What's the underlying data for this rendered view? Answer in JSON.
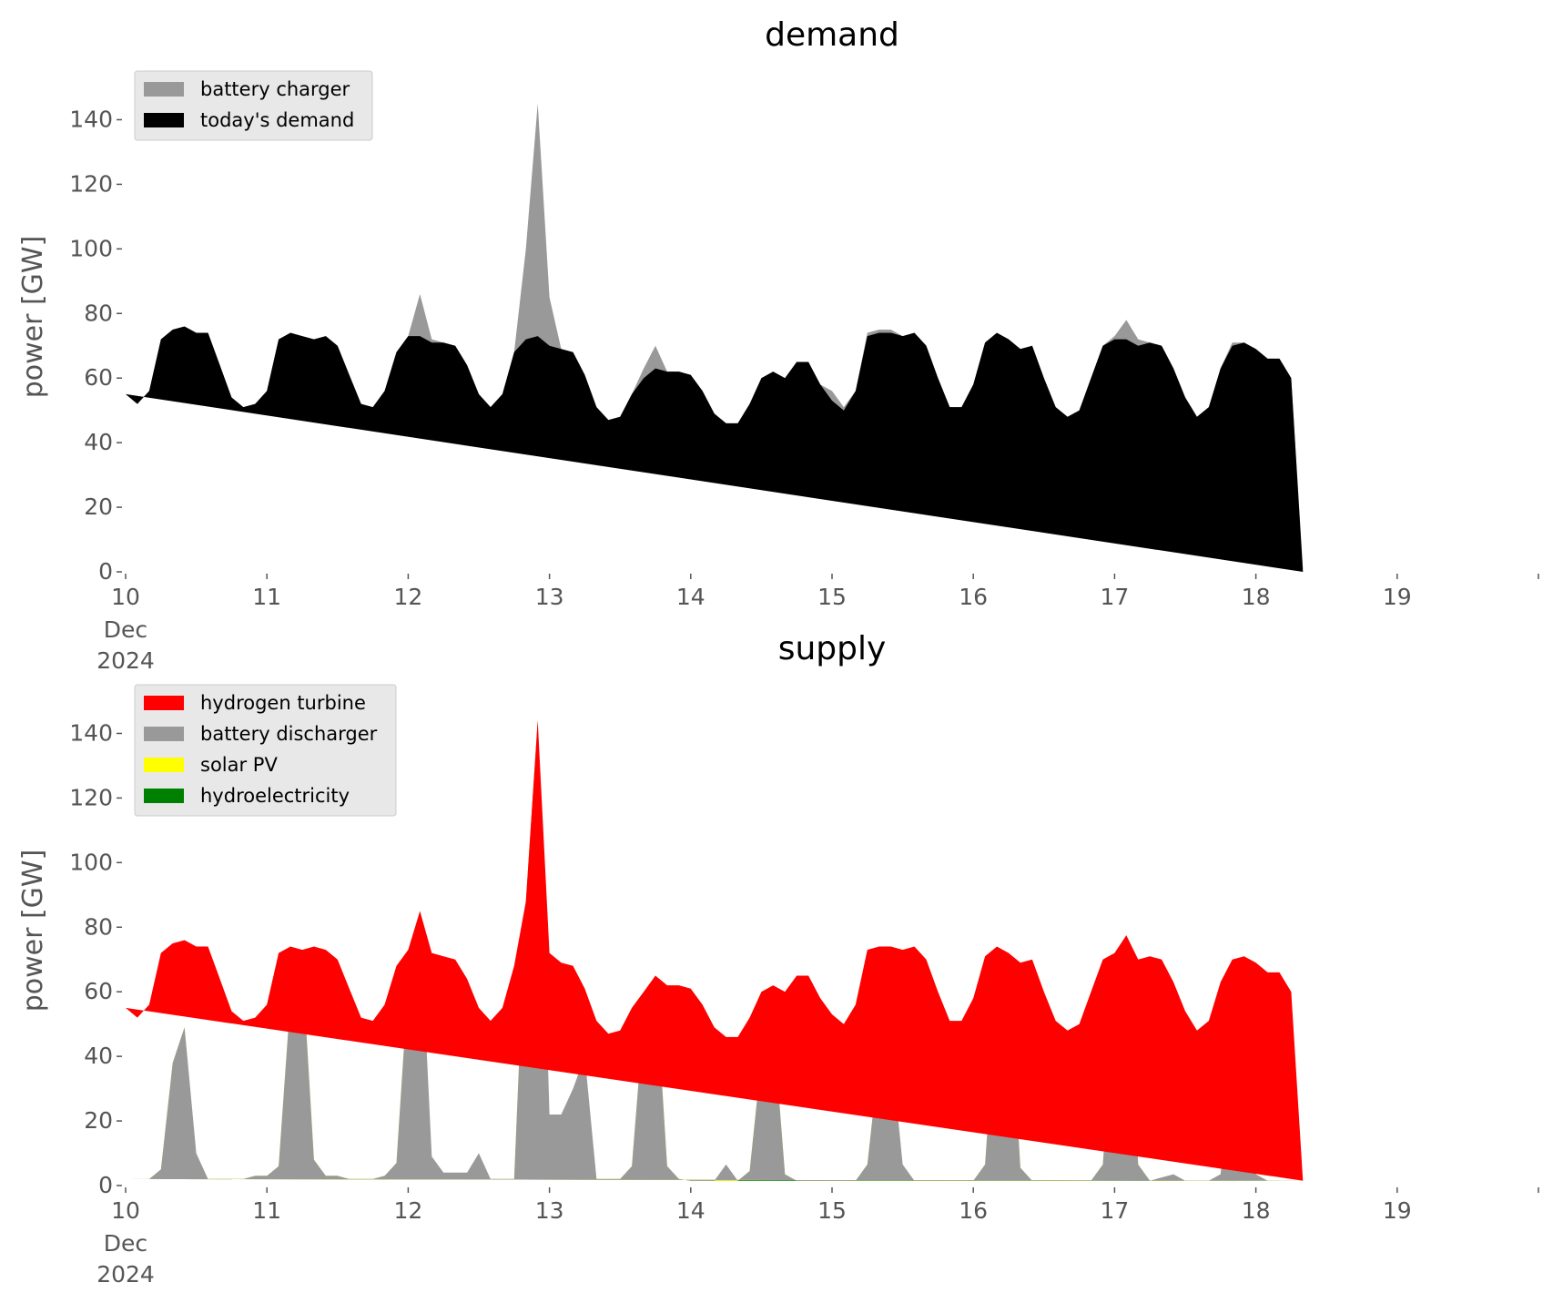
{
  "chart_data": [
    {
      "type": "area",
      "title": "demand",
      "xlabel": "",
      "ylabel": "power [GW]",
      "ylim": [
        0,
        150
      ],
      "yticks": [
        0,
        20,
        40,
        60,
        80,
        100,
        120,
        140
      ],
      "xlim": [
        "2024-12-10",
        "2024-12-20"
      ],
      "xticks": [
        "10",
        "11",
        "12",
        "13",
        "14",
        "15",
        "16",
        "17",
        "18",
        "19"
      ],
      "xtick_sub": [
        "Dec",
        "2024"
      ],
      "grid": false,
      "legend": "top-left",
      "stacked": false,
      "x_times": [
        "2024-12-10 00:00",
        "2024-12-10 02:00",
        "2024-12-10 04:00",
        "2024-12-10 06:00",
        "2024-12-10 08:00",
        "2024-12-10 10:00",
        "2024-12-10 12:00",
        "2024-12-10 14:00",
        "2024-12-10 16:00",
        "2024-12-10 18:00",
        "2024-12-10 20:00",
        "2024-12-10 22:00",
        "2024-12-11 00:00",
        "2024-12-11 02:00",
        "2024-12-11 04:00",
        "2024-12-11 06:00",
        "2024-12-11 08:00",
        "2024-12-11 10:00",
        "2024-12-11 12:00",
        "2024-12-11 14:00",
        "2024-12-11 16:00",
        "2024-12-11 18:00",
        "2024-12-11 20:00",
        "2024-12-11 22:00",
        "2024-12-12 00:00",
        "2024-12-12 02:00",
        "2024-12-12 04:00",
        "2024-12-12 06:00",
        "2024-12-12 08:00",
        "2024-12-12 10:00",
        "2024-12-12 12:00",
        "2024-12-12 14:00",
        "2024-12-12 16:00",
        "2024-12-12 18:00",
        "2024-12-12 20:00",
        "2024-12-12 22:00",
        "2024-12-13 00:00",
        "2024-12-13 02:00",
        "2024-12-13 04:00",
        "2024-12-13 06:00",
        "2024-12-13 08:00",
        "2024-12-13 10:00",
        "2024-12-13 12:00",
        "2024-12-13 14:00",
        "2024-12-13 16:00",
        "2024-12-13 18:00",
        "2024-12-13 20:00",
        "2024-12-13 22:00",
        "2024-12-14 00:00",
        "2024-12-14 02:00",
        "2024-12-14 04:00",
        "2024-12-14 06:00",
        "2024-12-14 08:00",
        "2024-12-14 10:00",
        "2024-12-14 12:00",
        "2024-12-14 14:00",
        "2024-12-14 16:00",
        "2024-12-14 18:00",
        "2024-12-14 20:00",
        "2024-12-14 22:00",
        "2024-12-15 00:00",
        "2024-12-15 02:00",
        "2024-12-15 04:00",
        "2024-12-15 06:00",
        "2024-12-15 08:00",
        "2024-12-15 10:00",
        "2024-12-15 12:00",
        "2024-12-15 14:00",
        "2024-12-15 16:00",
        "2024-12-15 18:00",
        "2024-12-15 20:00",
        "2024-12-15 22:00",
        "2024-12-16 00:00",
        "2024-12-16 02:00",
        "2024-12-16 04:00",
        "2024-12-16 06:00",
        "2024-12-16 08:00",
        "2024-12-16 10:00",
        "2024-12-16 12:00",
        "2024-12-16 14:00",
        "2024-12-16 16:00",
        "2024-12-16 18:00",
        "2024-12-16 20:00",
        "2024-12-16 22:00",
        "2024-12-17 00:00",
        "2024-12-17 02:00",
        "2024-12-17 04:00",
        "2024-12-17 06:00",
        "2024-12-17 08:00",
        "2024-12-17 10:00",
        "2024-12-17 12:00",
        "2024-12-17 14:00",
        "2024-12-17 16:00",
        "2024-12-17 18:00",
        "2024-12-17 20:00",
        "2024-12-17 22:00",
        "2024-12-18 00:00",
        "2024-12-18 02:00",
        "2024-12-18 04:00",
        "2024-12-18 06:00",
        "2024-12-18 08:00",
        "2024-12-18 10:00",
        "2024-12-18 12:00",
        "2024-12-18 14:00",
        "2024-12-18 16:00",
        "2024-12-18 18:00",
        "2024-12-18 20:00",
        "2024-12-18 22:00",
        "2024-12-19 00:00",
        "2024-12-19 02:00",
        "2024-12-19 04:00",
        "2024-12-19 06:00",
        "2024-12-19 08:00",
        "2024-12-19 10:00",
        "2024-12-19 12:00",
        "2024-12-19 14:00",
        "2024-12-19 16:00",
        "2024-12-19 18:00",
        "2024-12-19 20:00",
        "2024-12-19 22:00",
        "2024-12-20 00:00"
      ],
      "series": [
        {
          "name": "battery charger",
          "color": "#999999",
          "values": [
            55,
            52,
            56,
            72,
            75,
            76,
            74,
            74,
            64,
            54,
            51,
            52,
            56,
            72,
            74,
            73,
            72,
            73,
            70,
            61,
            52,
            51,
            56,
            68,
            73,
            86,
            72,
            71,
            70,
            64,
            55,
            51,
            55,
            68,
            100,
            145,
            85,
            69,
            68,
            61,
            51,
            47,
            48,
            55,
            63,
            70,
            62,
            62,
            61,
            56,
            49,
            46,
            46,
            52,
            60,
            62,
            60,
            65,
            65,
            58,
            56,
            51,
            56,
            74,
            75,
            75,
            73,
            74,
            70,
            60,
            51,
            51,
            58,
            71,
            74,
            72,
            69,
            70,
            60,
            51,
            48,
            50,
            60,
            70,
            73,
            78,
            72,
            71,
            70,
            63,
            54,
            48,
            51,
            63,
            71,
            71,
            69,
            66,
            66,
            60,
            1
          ]
        },
        {
          "name": "today's demand",
          "color": "#000000",
          "values": [
            55,
            52,
            56,
            72,
            75,
            76,
            74,
            74,
            64,
            54,
            51,
            52,
            56,
            72,
            74,
            73,
            72,
            73,
            70,
            61,
            52,
            51,
            56,
            68,
            73,
            73,
            71,
            71,
            70,
            64,
            55,
            51,
            55,
            68,
            72,
            73,
            70,
            69,
            68,
            61,
            51,
            47,
            48,
            55,
            60,
            63,
            62,
            62,
            61,
            56,
            49,
            46,
            46,
            52,
            60,
            62,
            60,
            65,
            65,
            58,
            53,
            50,
            56,
            73,
            74,
            74,
            73,
            74,
            70,
            60,
            51,
            51,
            58,
            71,
            74,
            72,
            69,
            70,
            60,
            51,
            48,
            50,
            60,
            70,
            72,
            72,
            70,
            71,
            70,
            63,
            54,
            48,
            51,
            63,
            70,
            71,
            69,
            66,
            66,
            60,
            0
          ]
        }
      ]
    },
    {
      "type": "area",
      "title": "supply",
      "xlabel": "",
      "ylabel": "power [GW]",
      "ylim": [
        0,
        150
      ],
      "yticks": [
        0,
        20,
        40,
        60,
        80,
        100,
        120,
        140
      ],
      "xlim": [
        "2024-12-10",
        "2024-12-20"
      ],
      "xticks": [
        "10",
        "11",
        "12",
        "13",
        "14",
        "15",
        "16",
        "17",
        "18",
        "19"
      ],
      "xtick_sub": [
        "Dec",
        "2024"
      ],
      "grid": false,
      "legend": "top-left",
      "stacked": true,
      "x_times": [
        "2024-12-10 00:00",
        "2024-12-10 02:00",
        "2024-12-10 04:00",
        "2024-12-10 06:00",
        "2024-12-10 08:00",
        "2024-12-10 10:00",
        "2024-12-10 12:00",
        "2024-12-10 14:00",
        "2024-12-10 16:00",
        "2024-12-10 18:00",
        "2024-12-10 20:00",
        "2024-12-10 22:00",
        "2024-12-11 00:00",
        "2024-12-11 02:00",
        "2024-12-11 04:00",
        "2024-12-11 06:00",
        "2024-12-11 08:00",
        "2024-12-11 10:00",
        "2024-12-11 12:00",
        "2024-12-11 14:00",
        "2024-12-11 16:00",
        "2024-12-11 18:00",
        "2024-12-11 20:00",
        "2024-12-11 22:00",
        "2024-12-12 00:00",
        "2024-12-12 02:00",
        "2024-12-12 04:00",
        "2024-12-12 06:00",
        "2024-12-12 08:00",
        "2024-12-12 10:00",
        "2024-12-12 12:00",
        "2024-12-12 14:00",
        "2024-12-12 16:00",
        "2024-12-12 18:00",
        "2024-12-12 20:00",
        "2024-12-12 22:00",
        "2024-12-13 00:00",
        "2024-12-13 02:00",
        "2024-12-13 04:00",
        "2024-12-13 06:00",
        "2024-12-13 08:00",
        "2024-12-13 10:00",
        "2024-12-13 12:00",
        "2024-12-13 14:00",
        "2024-12-13 16:00",
        "2024-12-13 18:00",
        "2024-12-13 20:00",
        "2024-12-13 22:00",
        "2024-12-14 00:00",
        "2024-12-14 02:00",
        "2024-12-14 04:00",
        "2024-12-14 06:00",
        "2024-12-14 08:00",
        "2024-12-14 10:00",
        "2024-12-14 12:00",
        "2024-12-14 14:00",
        "2024-12-14 16:00",
        "2024-12-14 18:00",
        "2024-12-14 20:00",
        "2024-12-14 22:00",
        "2024-12-15 00:00",
        "2024-12-15 02:00",
        "2024-12-15 04:00",
        "2024-12-15 06:00",
        "2024-12-15 08:00",
        "2024-12-15 10:00",
        "2024-12-15 12:00",
        "2024-12-15 14:00",
        "2024-12-15 16:00",
        "2024-12-15 18:00",
        "2024-12-15 20:00",
        "2024-12-15 22:00",
        "2024-12-16 00:00",
        "2024-12-16 02:00",
        "2024-12-16 04:00",
        "2024-12-16 06:00",
        "2024-12-16 08:00",
        "2024-12-16 10:00",
        "2024-12-16 12:00",
        "2024-12-16 14:00",
        "2024-12-16 16:00",
        "2024-12-16 18:00",
        "2024-12-16 20:00",
        "2024-12-16 22:00",
        "2024-12-17 00:00",
        "2024-12-17 02:00",
        "2024-12-17 04:00",
        "2024-12-17 06:00",
        "2024-12-17 08:00",
        "2024-12-17 10:00",
        "2024-12-17 12:00",
        "2024-12-17 14:00",
        "2024-12-17 16:00",
        "2024-12-17 18:00",
        "2024-12-17 20:00",
        "2024-12-17 22:00",
        "2024-12-18 00:00",
        "2024-12-18 02:00",
        "2024-12-18 04:00",
        "2024-12-18 06:00",
        "2024-12-18 08:00",
        "2024-12-18 10:00",
        "2024-12-18 12:00",
        "2024-12-18 14:00",
        "2024-12-18 16:00",
        "2024-12-18 18:00",
        "2024-12-18 20:00",
        "2024-12-18 22:00",
        "2024-12-19 00:00",
        "2024-12-19 02:00",
        "2024-12-19 04:00",
        "2024-12-19 06:00",
        "2024-12-19 08:00",
        "2024-12-19 10:00",
        "2024-12-19 12:00",
        "2024-12-19 14:00",
        "2024-12-19 16:00",
        "2024-12-19 18:00",
        "2024-12-19 20:00",
        "2024-12-19 22:00",
        "2024-12-20 00:00"
      ],
      "series": [
        {
          "name": "hydroelectricity",
          "color": "#008000",
          "values": [
            2,
            2,
            2,
            2,
            3,
            3,
            3,
            2,
            2,
            2,
            2,
            3,
            3,
            3,
            3,
            3,
            3,
            3,
            3,
            2,
            2,
            2,
            3,
            3,
            3,
            3,
            3,
            2,
            2,
            2,
            2,
            2,
            2,
            2,
            3,
            3,
            2,
            2,
            2,
            2,
            2,
            2,
            2,
            2,
            2,
            2,
            2,
            2,
            1.5,
            1.5,
            1.5,
            1.5,
            1.5,
            1.5,
            1.5,
            1.5,
            1.5,
            1.5,
            1.5,
            1.5,
            1.5,
            1.5,
            1.5,
            1.5,
            1.5,
            1.5,
            1.5,
            1.5,
            1.5,
            1.5,
            1.5,
            1.5,
            1.5,
            1.5,
            1.5,
            1.5,
            1.5,
            1.5,
            1.5,
            1.5,
            1.5,
            1.5,
            1.5,
            1.5,
            1.5,
            1.5,
            1.5,
            1.5,
            1.5,
            1.5,
            1.5,
            1.5,
            1.5,
            1.5,
            1.5,
            1.5,
            1.5,
            1.5,
            1.5,
            1.5,
            1.5
          ]
        },
        {
          "name": "solar PV",
          "color": "#ffff00",
          "values": [
            0,
            0,
            0,
            3,
            35,
            46,
            6,
            0,
            0,
            0,
            0,
            0,
            0,
            3,
            55,
            66,
            5,
            0,
            0,
            0,
            0,
            0,
            0,
            4,
            60,
            82,
            5,
            0,
            0,
            0,
            0,
            0,
            0,
            0,
            85,
            141,
            2,
            0,
            0,
            0,
            0,
            0,
            0,
            4,
            50,
            62,
            4,
            0,
            0,
            0,
            0,
            0,
            0,
            3,
            38,
            49,
            2,
            0,
            0,
            0,
            0,
            0,
            0,
            5,
            38,
            42,
            3,
            0,
            0,
            0,
            0,
            0,
            0,
            5,
            58,
            66,
            4,
            0,
            0,
            0,
            0,
            0,
            0,
            5,
            58,
            76,
            5,
            0,
            0,
            0,
            0,
            0,
            0,
            2,
            32,
            41,
            2,
            0,
            0,
            0,
            0
          ]
        },
        {
          "name": "battery discharger",
          "color": "#999999",
          "values": [
            0,
            0,
            0,
            0,
            0,
            0,
            1,
            0,
            0,
            0,
            0,
            0,
            0,
            0,
            0,
            0,
            0,
            0,
            0,
            0,
            0,
            0,
            0,
            0,
            0,
            0,
            1,
            2,
            2,
            2,
            8,
            0,
            0,
            0,
            0,
            0,
            18,
            20,
            28,
            38,
            0,
            0,
            0,
            0,
            0,
            0,
            0,
            0,
            0,
            0,
            0,
            5,
            0,
            0,
            0,
            0,
            0,
            0,
            0,
            0,
            0,
            0,
            0,
            0,
            0,
            0,
            2,
            0,
            0,
            0,
            0,
            0,
            0,
            0,
            0,
            0,
            0,
            0,
            0,
            0,
            0,
            0,
            0,
            0,
            0,
            0,
            0,
            0,
            1,
            2,
            0,
            0,
            0,
            0,
            0,
            0,
            0,
            0,
            0,
            0,
            0
          ]
        },
        {
          "name": "hydrogen turbine",
          "color": "#ff0000",
          "values": [
            53,
            50,
            54,
            67,
            37,
            27,
            64,
            72,
            62,
            52,
            49,
            49,
            53,
            66,
            16,
            4,
            66,
            70,
            67,
            59,
            50,
            49,
            53,
            61,
            10,
            0,
            63,
            67,
            66,
            60,
            45,
            49,
            53,
            66,
            0,
            0,
            50,
            47,
            38,
            21,
            49,
            45,
            46,
            49,
            8,
            1,
            56,
            60,
            59.5,
            54.5,
            47.5,
            39.5,
            44.5,
            47.5,
            20.5,
            11.5,
            56.5,
            63.5,
            63.5,
            56.5,
            51.5,
            48.5,
            54.5,
            66.5,
            34.5,
            30.5,
            66.5,
            72.5,
            68.5,
            58.5,
            49.5,
            49.5,
            56.5,
            64.5,
            14.5,
            4.5,
            63.5,
            68.5,
            58.5,
            49.5,
            46.5,
            48.5,
            58.5,
            63.5,
            12.5,
            0,
            63.5,
            69.5,
            67.5,
            59.5,
            52.5,
            46.5,
            49.5,
            59.5,
            36.5,
            28.5,
            65.5,
            64.5,
            64.5,
            58.5,
            0
          ]
        }
      ],
      "legend_order": [
        "hydrogen turbine",
        "battery discharger",
        "solar PV",
        "hydroelectricity"
      ]
    }
  ]
}
